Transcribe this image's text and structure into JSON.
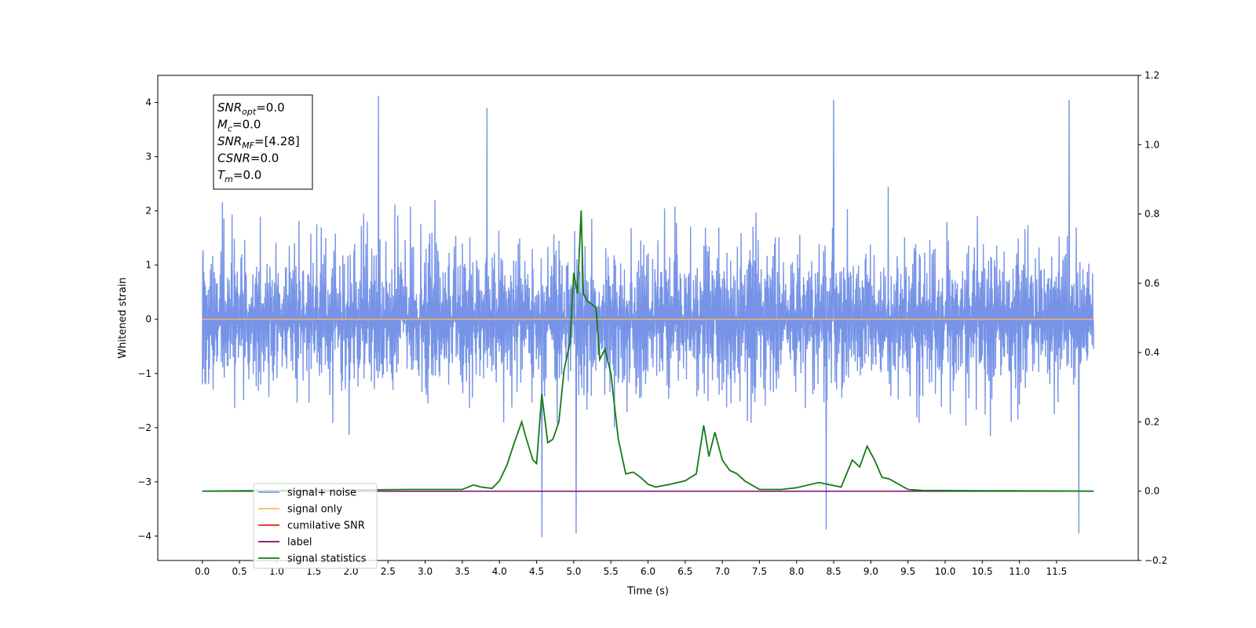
{
  "chart_data": {
    "type": "line",
    "xlabel": "Time (s)",
    "ylabel": "Whitened strain",
    "xlim": [
      -0.6,
      12.6
    ],
    "ylim": [
      -4.45,
      4.5
    ],
    "y2lim": [
      -0.2,
      1.2
    ],
    "xticks": [
      0.0,
      0.5,
      1.0,
      1.5,
      2.0,
      2.5,
      3.0,
      3.5,
      4.0,
      4.5,
      5.0,
      5.5,
      6.0,
      6.5,
      7.0,
      7.5,
      8.0,
      8.5,
      9.0,
      9.5,
      10.0,
      10.5,
      11.0,
      11.5
    ],
    "xtick_labels": [
      "0.0",
      "0.5",
      "1.0",
      "1.5",
      "2.0",
      "2.5",
      "3.0",
      "3.5",
      "4.0",
      "4.5",
      "5.0",
      "5.5",
      "6.0",
      "6.5",
      "7.0",
      "7.5",
      "8.0",
      "8.5",
      "9.0",
      "9.5",
      "10.0",
      "10.5",
      "11.0",
      "11.5"
    ],
    "yticks": [
      -4,
      -3,
      -2,
      -1,
      0,
      1,
      2,
      3,
      4
    ],
    "ytick_labels": [
      "−4",
      "−3",
      "−2",
      "−1",
      "0",
      "1",
      "2",
      "3",
      "4"
    ],
    "y2ticks": [
      -0.2,
      0.0,
      0.2,
      0.4,
      0.6,
      0.8,
      1.0,
      1.2
    ],
    "y2tick_labels": [
      "−0.2",
      "0.0",
      "0.2",
      "0.4",
      "0.6",
      "0.8",
      "1.0",
      "1.2"
    ],
    "grid": false,
    "legend_position": "bottom-left",
    "annotation_box": {
      "position": "top-left",
      "lines": [
        {
          "base": "SNR",
          "sub": "opt",
          "value": "=0.0"
        },
        {
          "base": "M",
          "sub": "c",
          "value": "=0.0"
        },
        {
          "base": "SNR",
          "sub": "MF",
          "value": "=[4.28]"
        },
        {
          "base": "CSNR",
          "sub": "",
          "value": "=0.0"
        },
        {
          "base": "T",
          "sub": "m",
          "value": "=0.0"
        }
      ]
    },
    "series": [
      {
        "name": "signal+ noise",
        "color": "#6f8de6",
        "axis": "left",
        "kind": "noise",
        "t_start": 0.0,
        "t_end": 12.0,
        "typical_range": [
          -2.0,
          2.6
        ],
        "extremes_max": 4.12,
        "extremes_min": -4.02,
        "notable_peaks": [
          {
            "x": 2.37,
            "y": 4.12
          },
          {
            "x": 8.5,
            "y": 4.05
          },
          {
            "x": 11.67,
            "y": 4.05
          },
          {
            "x": 3.83,
            "y": 3.9
          },
          {
            "x": 4.57,
            "y": -4.02
          },
          {
            "x": 5.03,
            "y": -3.95
          },
          {
            "x": 8.4,
            "y": -3.88
          },
          {
            "x": 11.8,
            "y": -3.95
          }
        ]
      },
      {
        "name": "signal only",
        "color": "#f5b95c",
        "axis": "left",
        "x": [
          0.0,
          12.0
        ],
        "y": [
          0.0,
          0.0
        ]
      },
      {
        "name": "cumilative SNR",
        "color": "#e8201c",
        "axis": "right",
        "x": [
          0.0,
          12.0
        ],
        "y": [
          0.0,
          0.0
        ]
      },
      {
        "name": "label",
        "color": "#7b0a6e",
        "axis": "right",
        "x": [
          0.0,
          12.0
        ],
        "y": [
          0.0,
          0.0
        ]
      },
      {
        "name": "signal statistics",
        "color": "#137a13",
        "axis": "right",
        "x": [
          0.0,
          2.8,
          3.2,
          3.5,
          3.65,
          3.75,
          3.9,
          4.0,
          4.1,
          4.2,
          4.3,
          4.35,
          4.45,
          4.5,
          4.57,
          4.65,
          4.72,
          4.8,
          4.87,
          4.95,
          5.0,
          5.05,
          5.1,
          5.13,
          5.18,
          5.3,
          5.35,
          5.42,
          5.5,
          5.6,
          5.7,
          5.8,
          5.9,
          6.0,
          6.1,
          6.3,
          6.5,
          6.65,
          6.75,
          6.82,
          6.9,
          7.0,
          7.1,
          7.2,
          7.3,
          7.5,
          7.8,
          8.0,
          8.3,
          8.6,
          8.75,
          8.85,
          8.95,
          9.05,
          9.15,
          9.25,
          9.5,
          9.7,
          12.0
        ],
        "y": [
          0.0,
          0.005,
          0.005,
          0.005,
          0.018,
          0.012,
          0.008,
          0.03,
          0.075,
          0.14,
          0.2,
          0.16,
          0.09,
          0.08,
          0.28,
          0.14,
          0.15,
          0.2,
          0.35,
          0.43,
          0.63,
          0.57,
          0.81,
          0.57,
          0.55,
          0.53,
          0.38,
          0.41,
          0.34,
          0.15,
          0.05,
          0.055,
          0.04,
          0.02,
          0.012,
          0.02,
          0.03,
          0.05,
          0.19,
          0.1,
          0.17,
          0.09,
          0.06,
          0.05,
          0.03,
          0.005,
          0.005,
          0.01,
          0.025,
          0.012,
          0.09,
          0.07,
          0.13,
          0.09,
          0.04,
          0.035,
          0.005,
          0.002,
          0.0
        ]
      }
    ]
  }
}
